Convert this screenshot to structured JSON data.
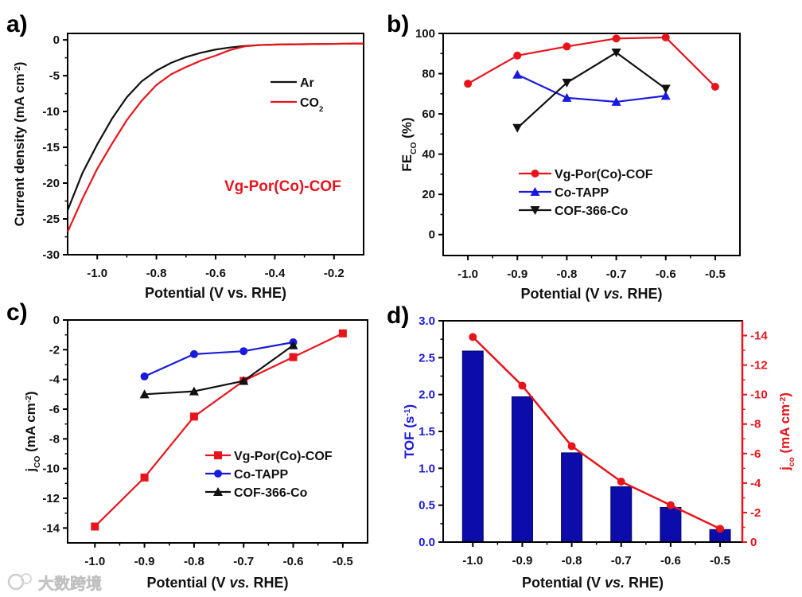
{
  "watermark": "大数跨境",
  "colors": {
    "red": "#e8141c",
    "blue": "#1a1adf",
    "black": "#111111",
    "bar": "#0c0caa"
  },
  "chart_data": [
    {
      "panel": "a)",
      "type": "line",
      "xlabel": [
        {
          "t": "Potential (V vs. RHE)",
          "s": ""
        }
      ],
      "ylabel": [
        {
          "t": "Current density (mA cm",
          "s": ""
        },
        {
          "t": "-2",
          "s": "sup"
        },
        {
          "t": ")",
          "s": ""
        }
      ],
      "xlim": [
        -1.1,
        -0.1
      ],
      "ylim": [
        -30,
        0.9
      ],
      "xticks": [
        {
          "v": -1.0,
          "l": "-1.0"
        },
        {
          "v": -0.8,
          "l": "-0.8"
        },
        {
          "v": -0.6,
          "l": "-0.6"
        },
        {
          "v": -0.4,
          "l": "-0.4"
        },
        {
          "v": -0.2,
          "l": "-0.2"
        }
      ],
      "yticks": [
        {
          "v": 0,
          "l": "0"
        },
        {
          "v": -5,
          "l": "-5"
        },
        {
          "v": -10,
          "l": "-10"
        },
        {
          "v": -15,
          "l": "-15"
        },
        {
          "v": -20,
          "l": "-20"
        },
        {
          "v": -25,
          "l": "-25"
        },
        {
          "v": -30,
          "l": "-30"
        }
      ],
      "annotation": "Vg-Por(Co)-COF",
      "series": [
        {
          "name": [
            {
              "t": "Ar",
              "s": ""
            }
          ],
          "color": "#111111",
          "marker": "none",
          "x": [
            -1.1,
            -1.05,
            -1.0,
            -0.95,
            -0.9,
            -0.85,
            -0.8,
            -0.75,
            -0.7,
            -0.65,
            -0.6,
            -0.55,
            -0.5,
            -0.45,
            -0.4,
            -0.3,
            -0.2,
            -0.1
          ],
          "y": [
            -23.8,
            -18.6,
            -14.6,
            -11.0,
            -8.0,
            -5.8,
            -4.3,
            -3.2,
            -2.4,
            -1.8,
            -1.35,
            -1.05,
            -0.85,
            -0.72,
            -0.66,
            -0.6,
            -0.55,
            -0.5
          ]
        },
        {
          "name": [
            {
              "t": "CO",
              "s": ""
            },
            {
              "t": "2",
              "s": "sub"
            }
          ],
          "color": "#e8141c",
          "marker": "none",
          "x": [
            -1.1,
            -1.05,
            -1.0,
            -0.95,
            -0.9,
            -0.85,
            -0.8,
            -0.75,
            -0.7,
            -0.65,
            -0.6,
            -0.55,
            -0.5,
            -0.45,
            -0.4,
            -0.3,
            -0.2,
            -0.1
          ],
          "y": [
            -26.8,
            -22.2,
            -18.0,
            -14.5,
            -11.2,
            -8.5,
            -6.3,
            -4.8,
            -3.8,
            -2.9,
            -2.2,
            -1.4,
            -0.9,
            -0.72,
            -0.66,
            -0.6,
            -0.55,
            -0.5
          ]
        }
      ]
    },
    {
      "panel": "b)",
      "type": "line",
      "xlabel": [
        {
          "t": "Potential (V ",
          "s": ""
        },
        {
          "t": "vs.",
          "s": "i"
        },
        {
          "t": " RHE)",
          "s": ""
        }
      ],
      "ylabel": [
        {
          "t": "FE",
          "s": ""
        },
        {
          "t": "CO",
          "s": "sub"
        },
        {
          "t": " (%)",
          "s": ""
        }
      ],
      "xlim": [
        -1.05,
        -0.45
      ],
      "ylim": [
        -10.4,
        100
      ],
      "xticks": [
        {
          "v": -1.0,
          "l": "-1.0"
        },
        {
          "v": -0.9,
          "l": "-0.9"
        },
        {
          "v": -0.8,
          "l": "-0.8"
        },
        {
          "v": -0.7,
          "l": "-0.7"
        },
        {
          "v": -0.6,
          "l": "-0.6"
        },
        {
          "v": -0.5,
          "l": "-0.5"
        }
      ],
      "yticks": [
        {
          "v": 0,
          "l": "0"
        },
        {
          "v": 20,
          "l": "20"
        },
        {
          "v": 40,
          "l": "40"
        },
        {
          "v": 60,
          "l": "60"
        },
        {
          "v": 80,
          "l": "80"
        },
        {
          "v": 100,
          "l": "100"
        }
      ],
      "series": [
        {
          "name": [
            {
              "t": "Vg-Por(Co)-COF",
              "s": ""
            }
          ],
          "color": "#e8141c",
          "marker": "circle",
          "x": [
            -1.0,
            -0.9,
            -0.8,
            -0.7,
            -0.6,
            -0.5
          ],
          "y": [
            75,
            89,
            93.5,
            97.5,
            98,
            73.5
          ]
        },
        {
          "name": [
            {
              "t": "Co-TAPP",
              "s": ""
            }
          ],
          "color": "#1a1adf",
          "marker": "tri-up",
          "x": [
            -0.9,
            -0.8,
            -0.7,
            -0.6
          ],
          "y": [
            79.5,
            68,
            66,
            69
          ]
        },
        {
          "name": [
            {
              "t": "COF-366-Co",
              "s": ""
            }
          ],
          "color": "#111111",
          "marker": "tri-down",
          "x": [
            -0.9,
            -0.8,
            -0.7,
            -0.6
          ],
          "y": [
            53,
            75.5,
            90.5,
            72.5
          ]
        }
      ]
    },
    {
      "panel": "c)",
      "type": "line",
      "xlabel": [
        {
          "t": "Potential (V ",
          "s": ""
        },
        {
          "t": "vs.",
          "s": "i"
        },
        {
          "t": " RHE)",
          "s": ""
        }
      ],
      "ylabel": [
        {
          "t": "j",
          "s": ""
        },
        {
          "t": "CO",
          "s": "sub"
        },
        {
          "t": " (mA cm",
          "s": ""
        },
        {
          "t": "-2",
          "s": "sup"
        },
        {
          "t": ")",
          "s": ""
        }
      ],
      "xlim": [
        -1.055,
        -0.45
      ],
      "ylim": [
        -15,
        0
      ],
      "xticks": [
        {
          "v": -1.0,
          "l": "-1.0"
        },
        {
          "v": -0.9,
          "l": "-0.9"
        },
        {
          "v": -0.8,
          "l": "-0.8"
        },
        {
          "v": -0.7,
          "l": "-0.7"
        },
        {
          "v": -0.6,
          "l": "-0.6"
        },
        {
          "v": -0.5,
          "l": "-0.5"
        }
      ],
      "yticks": [
        {
          "v": 0,
          "l": "0"
        },
        {
          "v": -2,
          "l": "-2"
        },
        {
          "v": -4,
          "l": "-4"
        },
        {
          "v": -6,
          "l": "-6"
        },
        {
          "v": -8,
          "l": "-8"
        },
        {
          "v": -10,
          "l": "-10"
        },
        {
          "v": -12,
          "l": "-12"
        },
        {
          "v": -14,
          "l": "-14"
        }
      ],
      "series": [
        {
          "name": [
            {
              "t": "Vg-Por(Co)-COF",
              "s": ""
            }
          ],
          "color": "#e8141c",
          "marker": "square",
          "x": [
            -1.0,
            -0.9,
            -0.8,
            -0.7,
            -0.6,
            -0.5
          ],
          "y": [
            -13.9,
            -10.6,
            -6.5,
            -4.1,
            -2.5,
            -0.9
          ]
        },
        {
          "name": [
            {
              "t": "Co-TAPP",
              "s": ""
            }
          ],
          "color": "#1a1adf",
          "marker": "circle",
          "x": [
            -0.9,
            -0.8,
            -0.7,
            -0.6
          ],
          "y": [
            -3.8,
            -2.3,
            -2.1,
            -1.5
          ]
        },
        {
          "name": [
            {
              "t": "COF-366-Co",
              "s": ""
            }
          ],
          "color": "#111111",
          "marker": "tri-up",
          "x": [
            -0.9,
            -0.8,
            -0.7,
            -0.6
          ],
          "y": [
            -5.0,
            -4.8,
            -4.1,
            -1.7
          ]
        }
      ]
    },
    {
      "panel": "d)",
      "type": "bar",
      "xlabel": [
        {
          "t": "Potential (V ",
          "s": ""
        },
        {
          "t": "vs.",
          "s": "i"
        },
        {
          "t": " RHE)",
          "s": ""
        }
      ],
      "ylabel": [
        {
          "t": "TOF (s",
          "s": ""
        },
        {
          "t": "-1",
          "s": "sup"
        },
        {
          "t": ")",
          "s": ""
        }
      ],
      "y2label": [
        {
          "t": "j",
          "s": ""
        },
        {
          "t": "co",
          "s": "sub"
        },
        {
          "t": " (mA cm",
          "s": ""
        },
        {
          "t": "-2",
          "s": "sup"
        },
        {
          "t": ")",
          "s": ""
        }
      ],
      "xlim": [
        -1.06,
        -0.455
      ],
      "ylim": [
        0,
        3.0
      ],
      "y2lim": [
        0,
        -15
      ],
      "xticks": [
        {
          "v": -1.0,
          "l": "-1.0"
        },
        {
          "v": -0.9,
          "l": "-0.9"
        },
        {
          "v": -0.8,
          "l": "-0.8"
        },
        {
          "v": -0.7,
          "l": "-0.7"
        },
        {
          "v": -0.6,
          "l": "-0.6"
        },
        {
          "v": -0.5,
          "l": "-0.5"
        }
      ],
      "yticks": [
        {
          "v": 0,
          "l": "0.0"
        },
        {
          "v": 0.5,
          "l": "0.5"
        },
        {
          "v": 1.0,
          "l": "1.0"
        },
        {
          "v": 1.5,
          "l": "1.5"
        },
        {
          "v": 2.0,
          "l": "2.0"
        },
        {
          "v": 2.5,
          "l": "2.5"
        },
        {
          "v": 3.0,
          "l": "3.0"
        }
      ],
      "y2ticks": [
        {
          "v": 0,
          "l": "0"
        },
        {
          "v": -2,
          "l": "-2"
        },
        {
          "v": -4,
          "l": "-4"
        },
        {
          "v": -6,
          "l": "-6"
        },
        {
          "v": -8,
          "l": "-8"
        },
        {
          "v": -10,
          "l": "-10"
        },
        {
          "v": -12,
          "l": "-12"
        },
        {
          "v": -14,
          "l": "-14"
        }
      ],
      "categories": [
        -1.0,
        -0.9,
        -0.8,
        -0.7,
        -0.6,
        -0.5
      ],
      "series": [
        {
          "name": "TOF",
          "axis": "left",
          "kind": "bar",
          "values": [
            2.59,
            1.97,
            1.21,
            0.75,
            0.47,
            0.17
          ]
        },
        {
          "name": "jco",
          "axis": "right",
          "kind": "line",
          "values": [
            -13.9,
            -10.6,
            -6.5,
            -4.1,
            -2.5,
            -0.9
          ]
        }
      ]
    }
  ]
}
